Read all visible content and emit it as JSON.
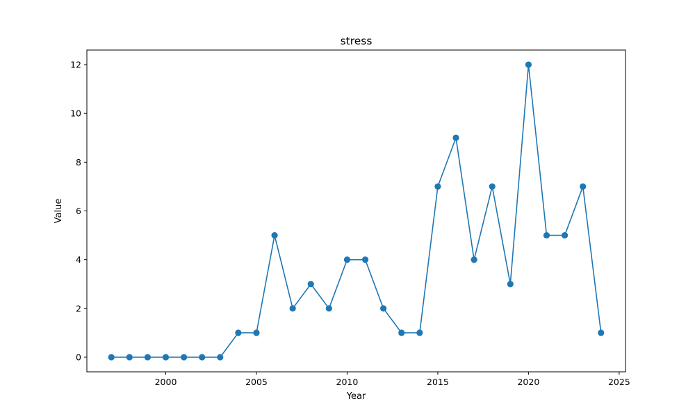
{
  "chart_data": {
    "type": "line",
    "title": "stress",
    "xlabel": "Year",
    "ylabel": "Value",
    "xlim": [
      1995.65,
      2025.35
    ],
    "ylim": [
      -0.6,
      12.6
    ],
    "xticks": [
      2000,
      2005,
      2010,
      2015,
      2020,
      2025
    ],
    "yticks": [
      0,
      2,
      4,
      6,
      8,
      10,
      12
    ],
    "grid": false,
    "color": "#1f77b4",
    "marker": "circle",
    "x": [
      1997,
      1998,
      1999,
      2000,
      2001,
      2002,
      2003,
      2004,
      2005,
      2006,
      2007,
      2008,
      2009,
      2010,
      2011,
      2012,
      2013,
      2014,
      2015,
      2016,
      2017,
      2018,
      2019,
      2020,
      2021,
      2022,
      2023,
      2024
    ],
    "y": [
      0,
      0,
      0,
      0,
      0,
      0,
      0,
      1,
      1,
      5,
      2,
      3,
      2,
      4,
      4,
      2,
      1,
      1,
      7,
      9,
      4,
      7,
      3,
      12,
      5,
      5,
      7,
      1
    ]
  }
}
